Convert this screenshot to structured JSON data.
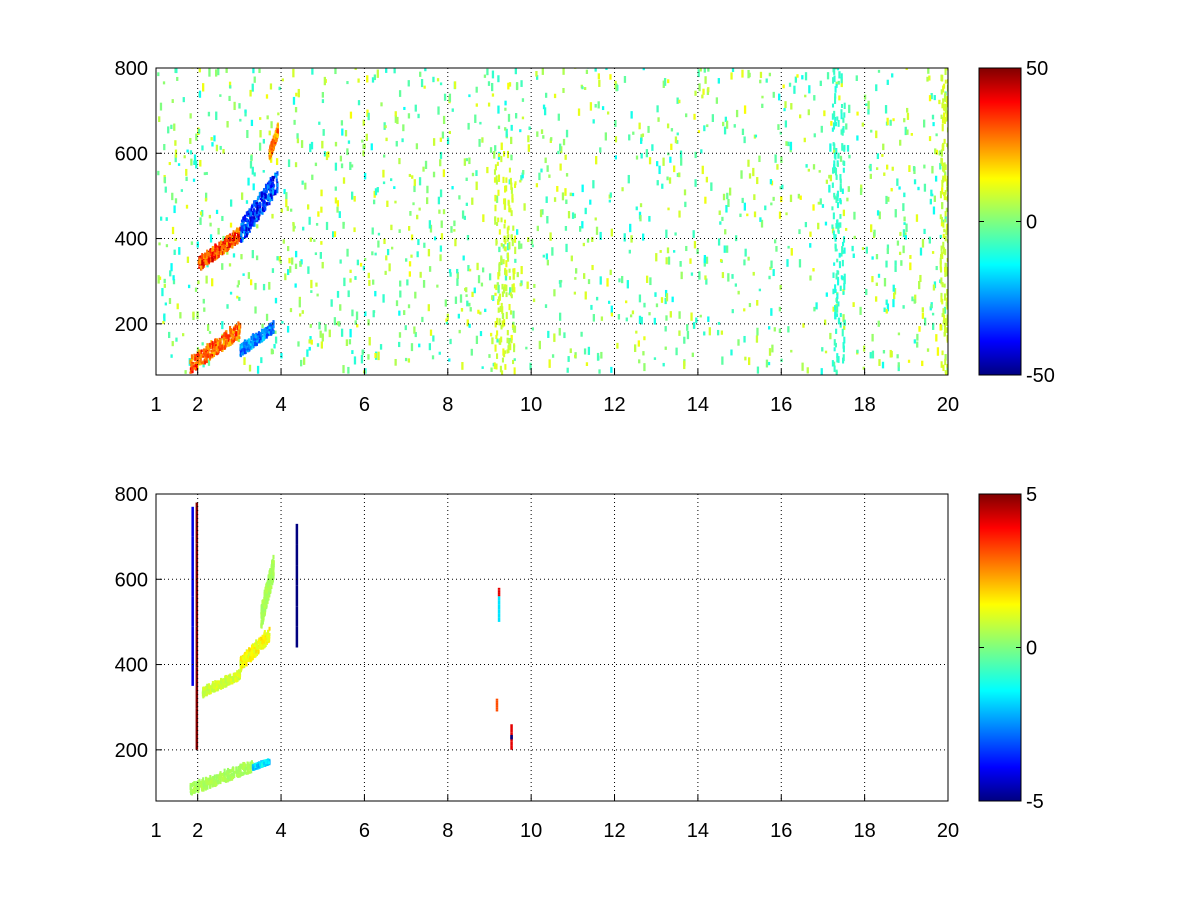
{
  "chart_data": [
    {
      "type": "heatmap",
      "title": "",
      "xlabel": "",
      "ylabel": "",
      "xlim": [
        1,
        20
      ],
      "ylim": [
        80,
        800
      ],
      "x_ticks": [
        "1",
        "2",
        "4",
        "6",
        "8",
        "10",
        "12",
        "14",
        "16",
        "18",
        "20"
      ],
      "x_tick_values": [
        1,
        2,
        4,
        6,
        8,
        10,
        12,
        14,
        16,
        18,
        20
      ],
      "y_ticks": [
        "200",
        "400",
        "600",
        "800"
      ],
      "y_tick_values": [
        200,
        400,
        600,
        800
      ],
      "grid": true,
      "colormap": "jet",
      "colorbar": {
        "range": [
          -50,
          50
        ],
        "ticks": [
          "50",
          "0",
          "-50"
        ],
        "tick_values": [
          50,
          0,
          -50
        ],
        "position": "right"
      },
      "features": [
        {
          "x": [
            1.8,
            3.0
          ],
          "y": [
            80,
            200
          ],
          "value": 35
        },
        {
          "x": [
            3.0,
            3.8
          ],
          "y": [
            120,
            200
          ],
          "value": -30
        },
        {
          "x": [
            2.0,
            3.0
          ],
          "y": [
            320,
            420
          ],
          "value": 40
        },
        {
          "x": [
            3.0,
            3.9
          ],
          "y": [
            380,
            560
          ],
          "value": -40
        },
        {
          "x": [
            3.7,
            3.9
          ],
          "y": [
            580,
            660
          ],
          "value": 30
        }
      ],
      "bands": [
        {
          "x": [
            9.1,
            9.6
          ],
          "y": [
            80,
            600
          ],
          "value": 8
        },
        {
          "x": [
            17.2,
            17.5
          ],
          "y": [
            80,
            800
          ],
          "value": -8
        },
        {
          "x": [
            19.8,
            20.0
          ],
          "y": [
            80,
            800
          ],
          "value": 8
        }
      ],
      "noise": {
        "x": [
          1,
          20
        ],
        "y": [
          80,
          800
        ],
        "values": [
          -12,
          12
        ]
      }
    },
    {
      "type": "heatmap",
      "title": "",
      "xlabel": "",
      "ylabel": "",
      "xlim": [
        1,
        20
      ],
      "ylim": [
        80,
        800
      ],
      "x_ticks": [
        "1",
        "2",
        "4",
        "6",
        "8",
        "10",
        "12",
        "14",
        "16",
        "18",
        "20"
      ],
      "x_tick_values": [
        1,
        2,
        4,
        6,
        8,
        10,
        12,
        14,
        16,
        18,
        20
      ],
      "y_ticks": [
        "200",
        "400",
        "600",
        "800"
      ],
      "y_tick_values": [
        200,
        400,
        600,
        800
      ],
      "grid": true,
      "colormap": "jet",
      "colorbar": {
        "range": [
          -5,
          5
        ],
        "ticks": [
          "5",
          "0",
          "-5"
        ],
        "tick_values": [
          5,
          0,
          -5
        ],
        "position": "right"
      },
      "features": [
        {
          "x": [
            2.1,
            3.0
          ],
          "y": [
            320,
            380
          ],
          "value": 1
        },
        {
          "x": [
            3.0,
            3.7
          ],
          "y": [
            380,
            480
          ],
          "value": 1.5
        },
        {
          "x": [
            3.5,
            3.8
          ],
          "y": [
            480,
            650
          ],
          "value": 0.5
        },
        {
          "x": [
            1.8,
            3.3
          ],
          "y": [
            90,
            170
          ],
          "value": 0.5
        },
        {
          "x": [
            3.3,
            3.7
          ],
          "y": [
            150,
            170
          ],
          "value": -2
        }
      ],
      "points": [
        {
          "x": 1.95,
          "y": [
            200,
            780
          ],
          "value": 5
        },
        {
          "x": 1.85,
          "y": [
            350,
            770
          ],
          "value": -4
        },
        {
          "x": 4.35,
          "y": [
            440,
            730
          ],
          "value": -5
        },
        {
          "x": 9.2,
          "y": [
            560,
            580
          ],
          "value": 4
        },
        {
          "x": 9.2,
          "y": [
            500,
            560
          ],
          "value": -1.5
        },
        {
          "x": 9.5,
          "y": [
            200,
            260
          ],
          "value": 4
        },
        {
          "x": 9.5,
          "y": [
            225,
            235
          ],
          "value": -5
        },
        {
          "x": 9.15,
          "y": [
            290,
            320
          ],
          "value": 3
        }
      ]
    }
  ]
}
